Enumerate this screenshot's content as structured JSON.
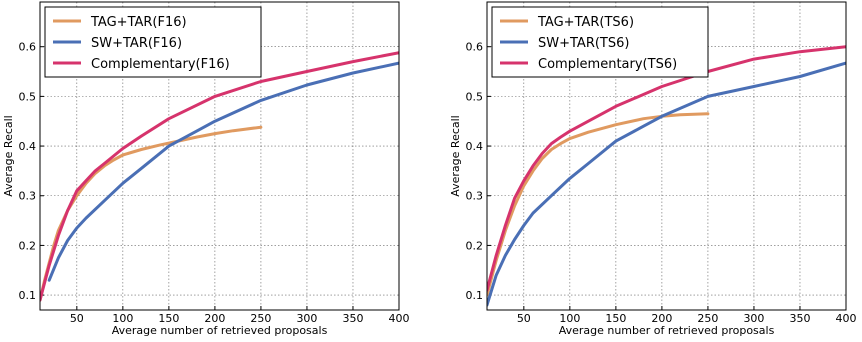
{
  "chart_data": [
    {
      "type": "line",
      "xlabel": "Average number of retrieved proposals",
      "ylabel": "Average Recall",
      "xlim": [
        10,
        400
      ],
      "ylim": [
        0.07,
        0.69
      ],
      "xticks": [
        50,
        100,
        150,
        200,
        250,
        300,
        350,
        400
      ],
      "yticks": [
        0.1,
        0.2,
        0.3,
        0.4,
        0.5,
        0.6
      ],
      "ytick_labels": [
        "0.1",
        "0.2",
        "0.3",
        "0.4",
        "0.5",
        "0.6"
      ],
      "grid": true,
      "legend_position": "top-left",
      "series": [
        {
          "name": "TAG+TAR(F16)",
          "color": "#e09a60",
          "x": [
            10,
            15,
            20,
            25,
            30,
            40,
            50,
            60,
            70,
            80,
            90,
            100,
            120,
            140,
            160,
            180,
            200,
            220,
            250
          ],
          "y": [
            0.09,
            0.13,
            0.165,
            0.2,
            0.23,
            0.27,
            0.3,
            0.325,
            0.345,
            0.36,
            0.372,
            0.382,
            0.393,
            0.402,
            0.41,
            0.418,
            0.425,
            0.431,
            0.438
          ]
        },
        {
          "name": "SW+TAR(F16)",
          "color": "#4a6fb5",
          "x": [
            20,
            30,
            40,
            50,
            60,
            80,
            100,
            120,
            150,
            180,
            200,
            250,
            300,
            350,
            400
          ],
          "y": [
            0.13,
            0.175,
            0.21,
            0.235,
            0.255,
            0.29,
            0.325,
            0.355,
            0.4,
            0.43,
            0.45,
            0.492,
            0.523,
            0.547,
            0.567
          ]
        },
        {
          "name": "Complementary(F16)",
          "color": "#d6336c",
          "x": [
            10,
            20,
            30,
            40,
            50,
            60,
            70,
            80,
            90,
            100,
            120,
            150,
            200,
            250,
            300,
            350,
            400
          ],
          "y": [
            0.09,
            0.16,
            0.22,
            0.27,
            0.31,
            0.33,
            0.35,
            0.365,
            0.38,
            0.395,
            0.42,
            0.455,
            0.5,
            0.53,
            0.55,
            0.57,
            0.588
          ]
        }
      ]
    },
    {
      "type": "line",
      "xlabel": "Average number of retrieved proposals",
      "ylabel": "Average Recall",
      "xlim": [
        10,
        400
      ],
      "ylim": [
        0.07,
        0.69
      ],
      "xticks": [
        50,
        100,
        150,
        200,
        250,
        300,
        350,
        400
      ],
      "yticks": [
        0.1,
        0.2,
        0.3,
        0.4,
        0.5,
        0.6
      ],
      "ytick_labels": [
        "0.1",
        "0.2",
        "0.3",
        "0.4",
        "0.5",
        "0.6"
      ],
      "grid": true,
      "legend_position": "top-left",
      "series": [
        {
          "name": "TAG+TAR(TS6)",
          "color": "#e09a60",
          "x": [
            10,
            20,
            30,
            40,
            50,
            60,
            70,
            80,
            90,
            100,
            120,
            150,
            180,
            200,
            220,
            250
          ],
          "y": [
            0.1,
            0.17,
            0.23,
            0.28,
            0.32,
            0.35,
            0.375,
            0.393,
            0.405,
            0.415,
            0.428,
            0.443,
            0.455,
            0.46,
            0.463,
            0.465
          ]
        },
        {
          "name": "SW+TAR(TS6)",
          "color": "#4a6fb5",
          "x": [
            10,
            20,
            30,
            40,
            50,
            60,
            80,
            100,
            120,
            150,
            180,
            200,
            250,
            300,
            350,
            400
          ],
          "y": [
            0.08,
            0.14,
            0.18,
            0.212,
            0.24,
            0.265,
            0.3,
            0.335,
            0.365,
            0.41,
            0.44,
            0.46,
            0.5,
            0.52,
            0.54,
            0.567
          ]
        },
        {
          "name": "Complementary(TS6)",
          "color": "#d6336c",
          "x": [
            10,
            20,
            30,
            40,
            50,
            60,
            70,
            80,
            90,
            100,
            120,
            150,
            200,
            250,
            300,
            350,
            400
          ],
          "y": [
            0.11,
            0.18,
            0.24,
            0.295,
            0.33,
            0.36,
            0.385,
            0.405,
            0.418,
            0.43,
            0.45,
            0.48,
            0.52,
            0.55,
            0.575,
            0.59,
            0.6
          ]
        }
      ]
    }
  ]
}
